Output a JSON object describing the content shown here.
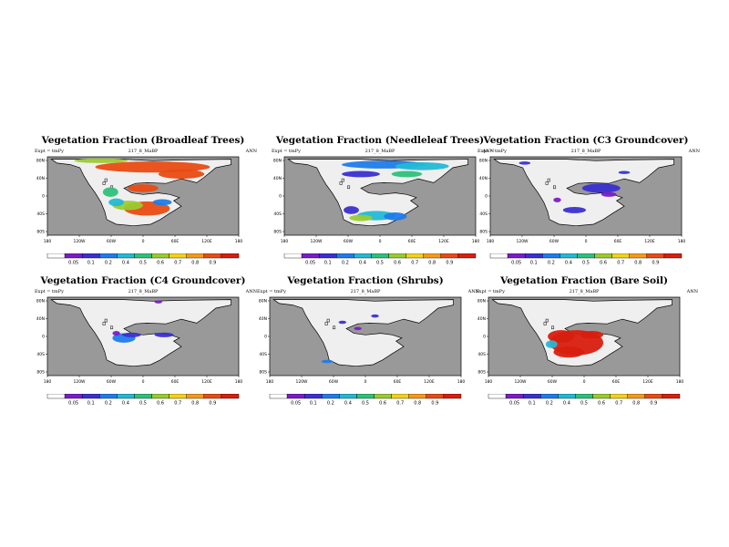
{
  "panels": [
    {
      "title": "Vegetation Fraction (Broadleaf Trees)",
      "expt": "Expt = tmPy",
      "case": "217_8_MaBP",
      "season": "ANN",
      "lon_ticks": [
        "180",
        "120W",
        "60W",
        "0",
        "60E",
        "120E",
        "180"
      ],
      "lat_ticks": [
        "80N",
        "40N",
        "0",
        "40S",
        "80S"
      ],
      "cbar_labels": [
        "0.05",
        "0.1",
        "0.2",
        "0.4",
        "0.5",
        "0.6",
        "0.7",
        "0.8",
        "0.9"
      ]
    },
    {
      "title": "Vegetation Fraction (Needleleaf Trees)",
      "expt": "Expt = tmPy",
      "case": "217_8_MaBP",
      "season": "ANN",
      "lon_ticks": [
        "180",
        "120W",
        "60W",
        "0",
        "60E",
        "120E",
        "180"
      ],
      "lat_ticks": [
        "80N",
        "40N",
        "0",
        "40S",
        "80S"
      ],
      "cbar_labels": [
        "0.05",
        "0.1",
        "0.2",
        "0.4",
        "0.5",
        "0.6",
        "0.7",
        "0.8",
        "0.9"
      ]
    },
    {
      "title": "Vegetation Fraction (C3 Groundcover)",
      "expt": "Expt = tmPy",
      "case": "217_8_MaBP",
      "season": "ANN",
      "lon_ticks": [
        "180",
        "120W",
        "60W",
        "0",
        "60E",
        "120E",
        "180"
      ],
      "lat_ticks": [
        "80N",
        "40N",
        "0",
        "40S",
        "80S"
      ],
      "cbar_labels": [
        "0.05",
        "0.1",
        "0.2",
        "0.4",
        "0.5",
        "0.6",
        "0.7",
        "0.8",
        "0.9"
      ]
    },
    {
      "title": "Vegetation Fraction (C4 Groundcover)",
      "expt": "Expt = tmPy",
      "case": "217_8_MaBP",
      "season": "ANN",
      "lon_ticks": [
        "180",
        "120W",
        "60W",
        "0",
        "60E",
        "120E",
        "180"
      ],
      "lat_ticks": [
        "80N",
        "40N",
        "0",
        "40S",
        "80S"
      ],
      "cbar_labels": [
        "0.05",
        "0.1",
        "0.2",
        "0.4",
        "0.5",
        "0.6",
        "0.7",
        "0.8",
        "0.9"
      ]
    },
    {
      "title": "Vegetation Fraction (Shrubs)",
      "expt": "Expt = tmPy",
      "case": "217_8_MaBP",
      "season": "ANN",
      "lon_ticks": [
        "180",
        "120W",
        "60W",
        "0",
        "60E",
        "120E",
        "180"
      ],
      "lat_ticks": [
        "80N",
        "40N",
        "0",
        "40S",
        "80S"
      ],
      "cbar_labels": [
        "0.05",
        "0.1",
        "0.2",
        "0.4",
        "0.5",
        "0.6",
        "0.7",
        "0.8",
        "0.9"
      ]
    },
    {
      "title": "Vegetation Fraction (Bare Soil)",
      "expt": "Expt = tmPy",
      "case": "217_8_MaBP",
      "season": "ANN",
      "lon_ticks": [
        "180",
        "120W",
        "60W",
        "0",
        "60E",
        "120E",
        "180"
      ],
      "lat_ticks": [
        "80N",
        "40N",
        "0",
        "40S",
        "80S"
      ],
      "cbar_labels": [
        "0.05",
        "0.1",
        "0.2",
        "0.4",
        "0.5",
        "0.6",
        "0.7",
        "0.8",
        "0.9"
      ]
    }
  ],
  "colors": {
    "ocean": "#999999",
    "land": "#efefef",
    "coast": "#000000",
    "scale": [
      "#ffffff",
      "#7a1cc7",
      "#3a2fd1",
      "#1f7bea",
      "#22b9d4",
      "#2ec07a",
      "#9acb2f",
      "#f2d21a",
      "#f49a1a",
      "#e84b13",
      "#d81e0e"
    ]
  }
}
